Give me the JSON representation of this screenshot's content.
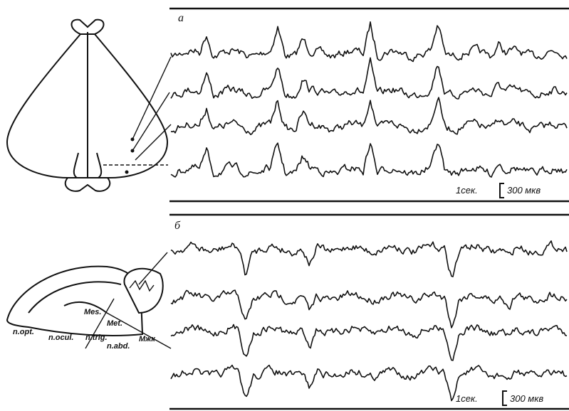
{
  "panel_a": {
    "label": "а",
    "time_scale": "1сек.",
    "amplitude_scale": "300 мкв"
  },
  "panel_b": {
    "label": "б",
    "time_scale": "1сек.",
    "amplitude_scale": "300 мкв"
  },
  "brain_labels": {
    "mes": "Mes.",
    "met": "Met.",
    "n_opt": "n.opt.",
    "n_ocul": "n.ocul.",
    "n_trig": "n.trig.",
    "n_abd": "n.abd.",
    "mzhk": "Мжк"
  }
}
